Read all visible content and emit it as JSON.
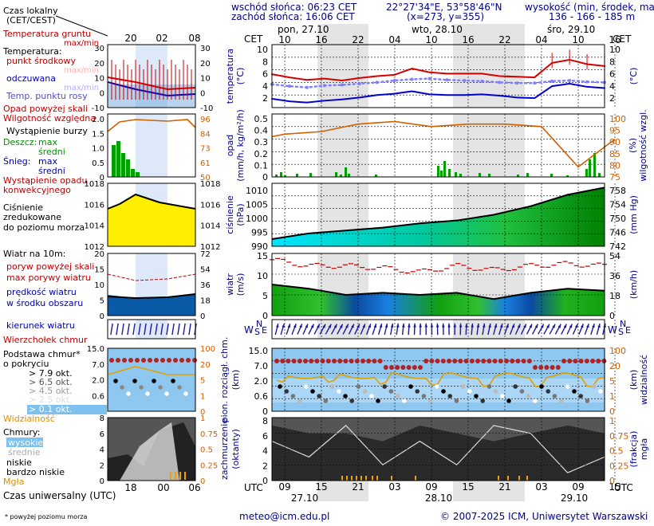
{
  "header": {
    "sunrise": "wschód słońca: 06:23 CET",
    "sunset": "zachód słońca: 16:06 CET",
    "coords": "22°27'34\"E, 53°58'46\"N",
    "grid": "(x=273, y=355)",
    "height_title": "wysokość (min, środek, max)",
    "height_values": "136 - 166 - 185 m"
  },
  "legend": {
    "local_time": "Czas lokalny",
    "local_time_sub": "(CET/CEST)",
    "ground_temp": "Temperatura gruntu",
    "ground_temp_sub": "max/min",
    "temperature": "Temperatura:",
    "mid_point": "punkt środkowy",
    "max_min": "max/min",
    "feels_like": "odczuwana",
    "max_min2": "max/min",
    "dew_point": "Temp. punktu rosy",
    "precip_above": "Opad powyżej skali",
    "rel_humidity": "Wilgotność względna",
    "storm": "Wystąpienie burzy",
    "rain": "Deszcz:",
    "rain_max": "max",
    "rain_mid": "średni",
    "snow": "Śnieg:",
    "snow_max": "max",
    "snow_mid": "średni",
    "conv_precip": "Wystąpienie opadu",
    "conv_precip2": "konwekcyjnego",
    "pressure": "Ciśnienie",
    "pressure2": "zredukowane",
    "pressure3": "do poziomu morza",
    "wind_10m": "Wiatr na 10m:",
    "gust_above": "poryw powyżej skali",
    "max_gust": "max porywy wiatru",
    "wind_speed": "prędkość wiatru",
    "wind_speed2": "w środku obszaru",
    "wind_dir": "kierunek wiatru",
    "cb_top": "Wierzchołek chmur",
    "cloud_base": "Podstawa chmur*",
    "cloud_base2": "o pokryciu",
    "okt1": "> 7.9 okt.",
    "okt2": "> 6.5 okt.",
    "okt3": "> 4.5 okt.",
    "okt4": "> 2.5 okt.",
    "okt5": "> 0.1 okt.",
    "visibility": "Widzialność",
    "clouds": "Chmury:",
    "cl_high": "wysokie",
    "cl_mid": "średnie",
    "cl_low": "niskie",
    "cl_vlow": "bardzo niskie",
    "fog": "Mgła",
    "utc_time": "Czas uniwersalny (UTC)",
    "footnote": "* powyżej poziomu morza"
  },
  "legend_ticks": {
    "top_hours": [
      "20",
      "02",
      "08"
    ],
    "bottom_hours": [
      "18",
      "00",
      "06"
    ],
    "temp_left": [
      "30",
      "20",
      "10",
      "0",
      "-10"
    ],
    "temp_right": [
      "30",
      "20",
      "10",
      "0",
      "-10"
    ],
    "precip_left": [
      "2.0",
      "1.5",
      "1.0",
      "0.5",
      "0"
    ],
    "precip_right": [
      "96",
      "84",
      "73",
      "61",
      "50"
    ],
    "press_left": [
      "1018",
      "1016",
      "1014",
      "1012"
    ],
    "press_right": [
      "1018",
      "1016",
      "1014",
      "1012"
    ],
    "wind_left": [
      "20",
      "15",
      "10",
      "5",
      "0"
    ],
    "wind_right": [
      "72",
      "54",
      "36",
      "18",
      "0"
    ],
    "cloud_left": [
      "15.0",
      "7.0",
      "2.0",
      "0.6",
      "0"
    ],
    "cloud_right": [
      "100",
      "20",
      "5",
      "1",
      "0"
    ],
    "cl_left": [
      "8",
      "6",
      "4",
      "2",
      "0"
    ],
    "cl_right": [
      "1",
      "0.75",
      "0.5",
      "0.25",
      "0"
    ]
  },
  "main": {
    "day_labels": [
      "pon, 27.10",
      "wto, 28.10",
      "śro, 29.10"
    ],
    "cet_label": "CET",
    "utc_label": "UTC",
    "cet_hours": [
      "10",
      "16",
      "22",
      "04",
      "10",
      "16",
      "22",
      "04",
      "10",
      "16"
    ],
    "utc_hours": [
      "09",
      "15",
      "21",
      "03",
      "09",
      "15",
      "21",
      "03",
      "09",
      "15"
    ],
    "bottom_dates": [
      "27.10",
      "28.10",
      "29.10"
    ],
    "footer_email": "meteo@icm.edu.pl",
    "footer_copy": "© 2007-2025 ICM, Uniwersytet Warszawski",
    "panels": {
      "temp": {
        "left_label": "temperatura\n(°C)",
        "right_label": "(°C)",
        "ticks": [
          "10",
          "8",
          "6",
          "4",
          "2"
        ]
      },
      "precip": {
        "left_label": "opad\n(mm/h, kg/m²/h)",
        "right_label": "wilgotność wzgl.\n(%)",
        "ticks_left": [
          "0.5",
          "0.4",
          "0.3",
          "0.2",
          "0.1",
          "0"
        ],
        "ticks_right": [
          "100",
          "95",
          "90",
          "85",
          "80",
          "75"
        ]
      },
      "pressure": {
        "left_label": "ciśnienie\n(hPa)",
        "right_label": "(mm Hg)",
        "ticks_left": [
          "1010",
          "1005",
          "1000",
          "995",
          "990"
        ],
        "ticks_right": [
          "758",
          "754",
          "750",
          "746",
          "742"
        ]
      },
      "wind": {
        "left_label": "wiatr\n(m/s)",
        "right_label": "(km/h)",
        "ticks_left": [
          "15",
          "10",
          "5",
          "0"
        ],
        "ticks_right": [
          "54",
          "36",
          "18",
          "0"
        ]
      },
      "winddir": {
        "left_label": "W",
        "compass_n": "N",
        "compass_s": "S",
        "compass_e": "E"
      },
      "cloudbase": {
        "left_label": "pion. rozciągł. chm.\n(km)",
        "right_label": "(km)\nwidzialność",
        "ticks_left": [
          "15.0",
          "7.0",
          "2.0",
          "0.6",
          "0"
        ],
        "ticks_right": [
          "100",
          "20",
          "5",
          "1",
          "0"
        ]
      },
      "clouds": {
        "left_label": "zachmurzenie\n(oktanty)",
        "right_label": "(frakcja)\nmgła",
        "ticks_left": [
          "8",
          "6",
          "4",
          "2",
          "0"
        ],
        "ticks_right": [
          "1",
          "0.75",
          "0.5",
          "0.25",
          "0"
        ]
      }
    }
  },
  "colors": {
    "temp": "#d40000",
    "feels": "#0000d0",
    "dew": "#8080ff",
    "humidity": "#d06000",
    "precip": "#00a000",
    "pressure_fill": "#ffe600",
    "wind_fill": "#00a000",
    "cloud_bg": "#7ec0ee",
    "cb_top": "#b22222",
    "visibility": "#e0a000",
    "axis_blue": "#00008b"
  },
  "chart_data": [
    {
      "type": "line",
      "title": "temperatura",
      "ylabel": "(°C)",
      "ylim": [
        1,
        11
      ],
      "x": [
        "27.10 09",
        "27.10 12",
        "27.10 15",
        "27.10 18",
        "27.10 21",
        "28.10 00",
        "28.10 03",
        "28.10 06",
        "28.10 09",
        "28.10 12",
        "28.10 15",
        "28.10 18",
        "28.10 21",
        "29.10 00",
        "29.10 03",
        "29.10 06",
        "29.10 09",
        "29.10 12",
        "29.10 15",
        "29.10 18"
      ],
      "series": [
        {
          "name": "punkt środkowy",
          "values": [
            6.3,
            5.8,
            5.4,
            5.6,
            5.3,
            5.7,
            6.0,
            6.2,
            7.2,
            6.6,
            6.4,
            6.4,
            6.4,
            6.0,
            5.9,
            5.8,
            8.1,
            8.6,
            7.9,
            7.6
          ]
        },
        {
          "name": "odczuwana",
          "values": [
            2.4,
            2.0,
            1.8,
            2.1,
            2.3,
            2.6,
            3.0,
            3.2,
            3.6,
            3.1,
            3.0,
            3.0,
            3.1,
            2.9,
            2.6,
            2.5,
            4.4,
            4.8,
            4.3,
            4.1
          ]
        },
        {
          "name": "Temp. punktu rosy",
          "values": [
            4.7,
            4.4,
            4.2,
            4.5,
            4.6,
            4.8,
            5.0,
            5.3,
            5.5,
            5.6,
            5.4,
            5.3,
            5.2,
            5.0,
            4.9,
            4.9,
            5.2,
            5.3,
            5.1,
            5.0
          ]
        }
      ]
    },
    {
      "type": "line",
      "title": "wilgotność wzgl.",
      "ylabel": "(%)",
      "ylim": [
        75,
        100
      ],
      "x": [
        "27.10 09",
        "27.10 15",
        "27.10 21",
        "28.10 03",
        "28.10 09",
        "28.10 15",
        "28.10 21",
        "29.10 03",
        "29.10 09",
        "29.10 15"
      ],
      "series": [
        {
          "name": "Wilgotność względna",
          "values": [
            92,
            93,
            96,
            97,
            95,
            96,
            96,
            95,
            79,
            90
          ]
        }
      ]
    },
    {
      "type": "area",
      "title": "ciśnienie",
      "ylabel": "(hPa)",
      "ylim": [
        990,
        1012
      ],
      "x": [
        "27.10 09",
        "27.10 15",
        "27.10 21",
        "28.10 03",
        "28.10 09",
        "28.10 15",
        "28.10 21",
        "29.10 03",
        "29.10 09",
        "29.10 15"
      ],
      "series": [
        {
          "name": "Ciśnienie",
          "values": [
            992.5,
            994.5,
            995.5,
            996.5,
            998,
            999,
            1001,
            1004,
            1008,
            1010.5
          ]
        }
      ]
    },
    {
      "type": "area",
      "title": "wiatr",
      "ylabel": "(m/s)",
      "ylim": [
        0,
        15
      ],
      "x": [
        "27.10 09",
        "27.10 15",
        "27.10 21",
        "28.10 03",
        "28.10 09",
        "28.10 15",
        "28.10 21",
        "29.10 03",
        "29.10 09",
        "29.10 15"
      ],
      "series": [
        {
          "name": "prędkość wiatru",
          "values": [
            7.5,
            6.5,
            5,
            5.5,
            5,
            5.5,
            4,
            5.5,
            6.5,
            6
          ]
        },
        {
          "name": "max porywy wiatru",
          "values": [
            13.5,
            12,
            12,
            11.5,
            10.5,
            12,
            11,
            12,
            12.5,
            12
          ]
        }
      ]
    },
    {
      "type": "line",
      "title": "zachmurzenie",
      "ylabel": "(oktanty)",
      "ylim": [
        0,
        8
      ],
      "x": [
        "27.10 09",
        "27.10 15",
        "27.10 21",
        "28.10 03",
        "28.10 09",
        "28.10 15",
        "28.10 21",
        "29.10 03",
        "29.10 09",
        "29.10 15"
      ],
      "series": [
        {
          "name": "wysokie",
          "values": [
            5,
            3,
            7,
            2,
            5,
            2,
            7,
            6,
            1,
            3
          ]
        },
        {
          "name": "niskie",
          "values": [
            7,
            6,
            6,
            5,
            7,
            6,
            5,
            6,
            7,
            6
          ]
        }
      ]
    }
  ]
}
